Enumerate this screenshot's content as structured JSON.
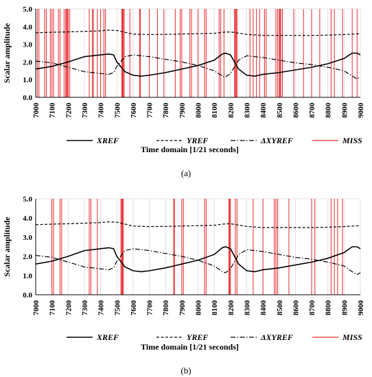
{
  "figure": {
    "colors": {
      "axis": "#000000",
      "grid": "#d9d9d9",
      "miss": "#e8262b",
      "line": "#000000"
    }
  },
  "chart_data": [
    {
      "type": "line",
      "panel_label": "(a)",
      "xlabel": "Time domain [1/21 seconds]",
      "ylabel": "Scalar amplitude",
      "xlim": [
        7000,
        9000
      ],
      "ylim": [
        0,
        5
      ],
      "x_ticks": [
        "7000",
        "7100",
        "7200",
        "7300",
        "7400",
        "7500",
        "7600",
        "7700",
        "7800",
        "7900",
        "8000",
        "8100",
        "8200",
        "8300",
        "8400",
        "8500",
        "8600",
        "8700",
        "8800",
        "8900",
        "9000"
      ],
      "y_ticks": [
        "0.0",
        "1.0",
        "2.0",
        "3.0",
        "4.0",
        "5.0"
      ],
      "grid": "vertical",
      "legend_position": "bottom",
      "series": [
        {
          "name": "XREF",
          "style": "solid",
          "x": [
            7000,
            7100,
            7200,
            7250,
            7300,
            7400,
            7450,
            7480,
            7500,
            7550,
            7600,
            7650,
            7700,
            7800,
            7900,
            8000,
            8100,
            8150,
            8170,
            8200,
            8250,
            8300,
            8350,
            8400,
            8500,
            8600,
            8700,
            8800,
            8900,
            8950,
            8980,
            9000
          ],
          "y": [
            1.6,
            1.75,
            2.0,
            2.15,
            2.3,
            2.4,
            2.45,
            2.4,
            2.0,
            1.45,
            1.25,
            1.2,
            1.25,
            1.4,
            1.6,
            1.8,
            2.1,
            2.45,
            2.5,
            2.4,
            1.6,
            1.25,
            1.2,
            1.3,
            1.4,
            1.55,
            1.7,
            1.9,
            2.2,
            2.5,
            2.5,
            2.4
          ]
        },
        {
          "name": "YREF",
          "style": "dashed",
          "x": [
            7000,
            7100,
            7200,
            7300,
            7400,
            7450,
            7500,
            7550,
            7600,
            7700,
            7800,
            7900,
            8000,
            8100,
            8150,
            8200,
            8300,
            8400,
            8500,
            8600,
            8700,
            8800,
            8900,
            9000
          ],
          "y": [
            3.65,
            3.68,
            3.7,
            3.73,
            3.76,
            3.8,
            3.78,
            3.68,
            3.58,
            3.55,
            3.56,
            3.58,
            3.6,
            3.62,
            3.68,
            3.7,
            3.56,
            3.5,
            3.5,
            3.5,
            3.5,
            3.52,
            3.55,
            3.6
          ]
        },
        {
          "name": "ΔXYREF",
          "style": "dash-dot",
          "x": [
            7000,
            7100,
            7200,
            7300,
            7400,
            7450,
            7480,
            7500,
            7550,
            7600,
            7650,
            7700,
            7800,
            7900,
            8000,
            8100,
            8150,
            8170,
            8200,
            8250,
            8300,
            8350,
            8400,
            8500,
            8600,
            8700,
            8800,
            8900,
            8950,
            8980,
            9000
          ],
          "y": [
            2.05,
            1.95,
            1.7,
            1.45,
            1.35,
            1.3,
            1.4,
            1.75,
            2.3,
            2.4,
            2.35,
            2.3,
            2.15,
            2.0,
            1.8,
            1.5,
            1.2,
            1.15,
            1.35,
            2.1,
            2.35,
            2.3,
            2.25,
            2.1,
            1.95,
            1.85,
            1.7,
            1.5,
            1.2,
            1.05,
            1.15
          ]
        },
        {
          "name": "MISS",
          "style": "vertical-lines",
          "x": [
            7000,
            7010,
            7020,
            7055,
            7065,
            7090,
            7100,
            7110,
            7140,
            7150,
            7175,
            7185,
            7190,
            7195,
            7200,
            7210,
            7330,
            7350,
            7355,
            7380,
            7400,
            7420,
            7430,
            7530,
            7535,
            7540,
            7545,
            7580,
            7640,
            7645,
            7700,
            7750,
            7790,
            7860,
            7890,
            7900,
            7950,
            7960,
            8000,
            8040,
            8050,
            8130,
            8140,
            8160,
            8225,
            8230,
            8235,
            8240,
            8320,
            8340,
            8360,
            8380,
            8410,
            8420,
            8480,
            8490,
            8500,
            8505,
            8510,
            8520,
            8590,
            8650,
            8700,
            8750,
            8820,
            8840,
            8890,
            8950,
            8980
          ],
          "y_extent": [
            0,
            5
          ]
        }
      ]
    },
    {
      "type": "line",
      "panel_label": "(b)",
      "xlabel": "Time domain [1/21 seconds]",
      "ylabel": "Scalar amplitude",
      "xlim": [
        7000,
        9000
      ],
      "ylim": [
        0,
        5
      ],
      "x_ticks": [
        "7000",
        "7100",
        "7200",
        "7300",
        "7400",
        "7500",
        "7600",
        "7700",
        "7800",
        "7900",
        "8000",
        "8100",
        "8200",
        "8300",
        "8400",
        "8500",
        "8600",
        "8700",
        "8800",
        "8900",
        "9000"
      ],
      "y_ticks": [
        "0.0",
        "1.0",
        "2.0",
        "3.0",
        "4.0",
        "5.0"
      ],
      "grid": "vertical",
      "legend_position": "bottom",
      "series": [
        {
          "name": "XREF",
          "style": "solid",
          "x": [
            7000,
            7100,
            7200,
            7250,
            7300,
            7400,
            7450,
            7480,
            7500,
            7550,
            7600,
            7650,
            7700,
            7800,
            7900,
            8000,
            8100,
            8150,
            8170,
            8200,
            8250,
            8300,
            8350,
            8400,
            8500,
            8600,
            8700,
            8800,
            8900,
            8950,
            8980,
            9000
          ],
          "y": [
            1.6,
            1.75,
            2.0,
            2.15,
            2.3,
            2.4,
            2.45,
            2.4,
            2.0,
            1.45,
            1.25,
            1.2,
            1.25,
            1.4,
            1.6,
            1.8,
            2.1,
            2.45,
            2.5,
            2.4,
            1.6,
            1.25,
            1.2,
            1.3,
            1.4,
            1.55,
            1.7,
            1.9,
            2.2,
            2.5,
            2.5,
            2.4
          ]
        },
        {
          "name": "YREF",
          "style": "dashed",
          "x": [
            7000,
            7100,
            7200,
            7300,
            7400,
            7450,
            7500,
            7550,
            7600,
            7700,
            7800,
            7900,
            8000,
            8100,
            8150,
            8200,
            8300,
            8400,
            8500,
            8600,
            8700,
            8800,
            8900,
            9000
          ],
          "y": [
            3.65,
            3.68,
            3.7,
            3.73,
            3.76,
            3.8,
            3.78,
            3.68,
            3.58,
            3.55,
            3.56,
            3.58,
            3.6,
            3.62,
            3.68,
            3.7,
            3.56,
            3.5,
            3.5,
            3.5,
            3.5,
            3.52,
            3.55,
            3.6
          ]
        },
        {
          "name": "ΔXYREF",
          "style": "dash-dot",
          "x": [
            7000,
            7100,
            7200,
            7300,
            7400,
            7450,
            7480,
            7500,
            7550,
            7600,
            7650,
            7700,
            7800,
            7900,
            8000,
            8100,
            8150,
            8170,
            8200,
            8250,
            8300,
            8350,
            8400,
            8500,
            8600,
            8700,
            8800,
            8900,
            8950,
            8980,
            9000
          ],
          "y": [
            2.05,
            1.95,
            1.7,
            1.45,
            1.35,
            1.3,
            1.4,
            1.75,
            2.3,
            2.4,
            2.35,
            2.3,
            2.15,
            2.0,
            1.8,
            1.5,
            1.2,
            1.15,
            1.35,
            2.1,
            2.35,
            2.3,
            2.25,
            2.1,
            1.95,
            1.85,
            1.7,
            1.5,
            1.2,
            1.05,
            1.15
          ]
        },
        {
          "name": "MISS",
          "style": "vertical-lines",
          "x": [
            7100,
            7110,
            7150,
            7160,
            7330,
            7340,
            7380,
            7525,
            7530,
            7535,
            7540,
            7850,
            7855,
            7900,
            7910,
            8040,
            8050,
            8190,
            8195,
            8200,
            8230,
            8240,
            8340,
            8400,
            8470,
            8480,
            8490,
            8560,
            8700,
            8720,
            8820,
            8840,
            8860,
            8890
          ],
          "y_extent": [
            0,
            5
          ]
        }
      ]
    }
  ]
}
